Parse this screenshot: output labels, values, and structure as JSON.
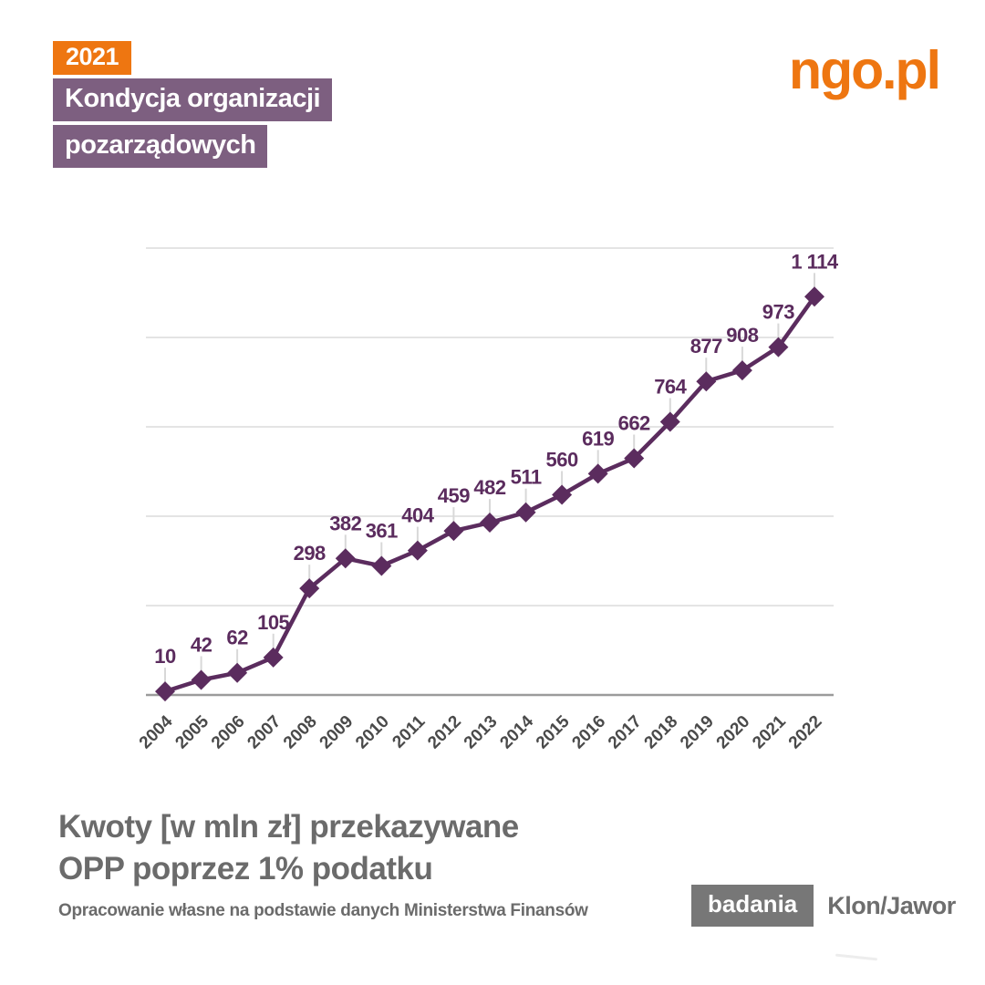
{
  "header": {
    "year_badge": "2021",
    "campaign_line1": "Kondycja organizacji",
    "campaign_line2": "pozarządowych",
    "logo": "ngo.pl"
  },
  "chart_data": {
    "type": "line",
    "title": "Kwoty [w mln zł] przekazywane OPP poprzez 1% podatku",
    "xlabel": "",
    "ylabel": "",
    "categories": [
      "2004",
      "2005",
      "2006",
      "2007",
      "2008",
      "2009",
      "2010",
      "2011",
      "2012",
      "2013",
      "2014",
      "2015",
      "2016",
      "2017",
      "2018",
      "2019",
      "2020",
      "2021",
      "2022"
    ],
    "values": [
      10,
      42,
      62,
      105,
      298,
      382,
      361,
      404,
      459,
      482,
      511,
      560,
      619,
      662,
      764,
      877,
      908,
      973,
      1114
    ],
    "value_labels": [
      "10",
      "42",
      "62",
      "105",
      "298",
      "382",
      "361",
      "404",
      "459",
      "482",
      "511",
      "560",
      "619",
      "662",
      "764",
      "877",
      "908",
      "973",
      "1 114"
    ],
    "ylim": [
      0,
      1250
    ],
    "grid_step": 250,
    "grid": "horizontal-only",
    "legend": "none",
    "marker": "diamond",
    "series_color": "#5B2C5E",
    "gridline_color": "#E4E4E4",
    "axis_color": "#9B9B9B",
    "leader_line_color": "#D8D8D8",
    "tick_label_color": "#4A4A4A"
  },
  "footer": {
    "title_line1": "Kwoty [w mln zł] przekazywane",
    "title_line2": "OPP poprzez 1% podatku",
    "source": "Opracowanie własne na podstawie danych Ministerstwa Finansów",
    "badge": "badania",
    "brand": "Klon/Jawor"
  },
  "colors": {
    "accent_orange": "#EE7611",
    "badge_purple": "#7D5F80",
    "line_purple": "#5B2C5E",
    "text_gray": "#6B6B6B",
    "badge_gray": "#777777",
    "background": "#FFFFFF"
  }
}
